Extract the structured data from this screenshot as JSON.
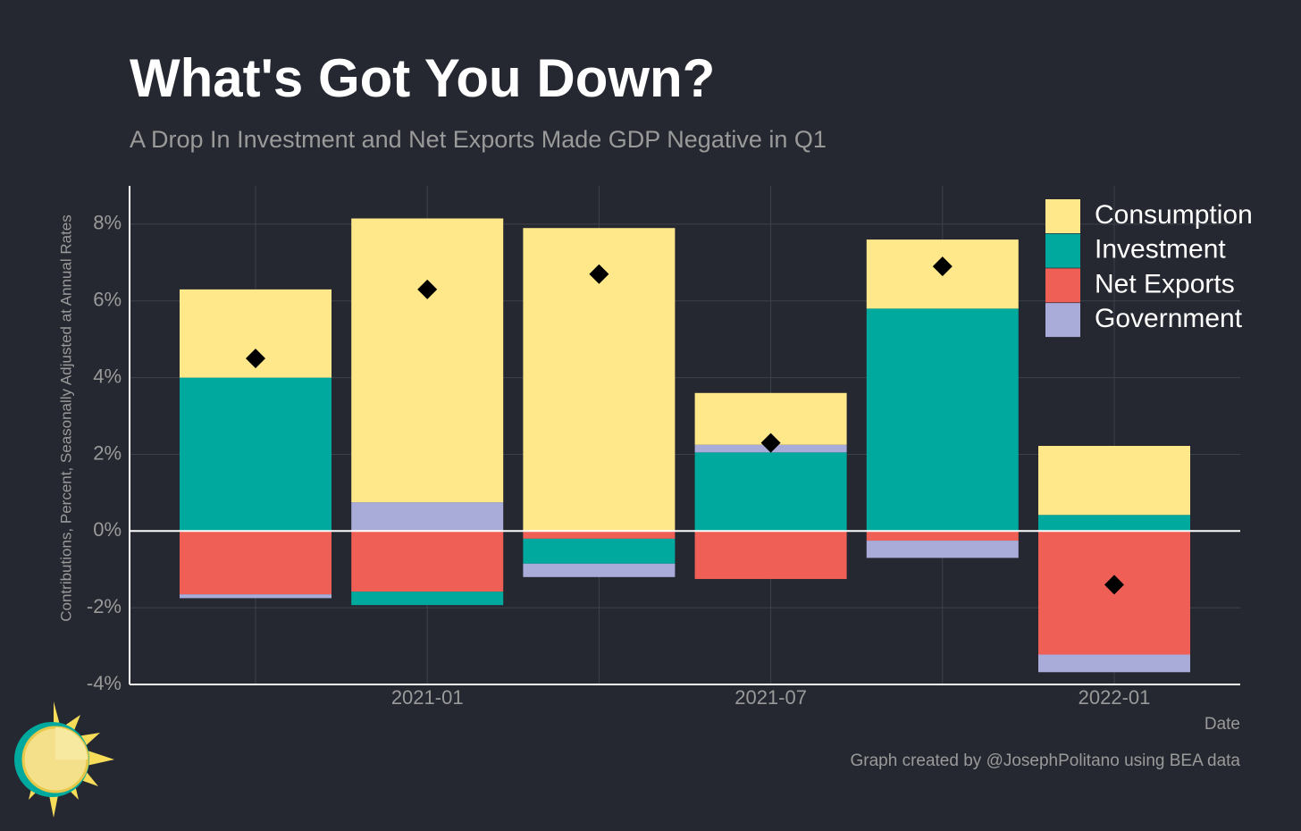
{
  "chart_data": {
    "type": "stacked-bar",
    "title": "What's Got You Down?",
    "subtitle": "A Drop In Investment and Net Exports Made GDP Negative in Q1",
    "y_label": "Contributions, Percent, Seasonally Adjusted at Annual Rates",
    "x_label": "Date",
    "caption": "Graph created by @JosephPolitano using BEA data",
    "categories": [
      null,
      "2021-01",
      null,
      "2021-07",
      null,
      "2022-01"
    ],
    "series": [
      {
        "name": "Consumption",
        "color": "#FFE88A",
        "values": [
          2.3,
          7.4,
          7.9,
          1.35,
          1.8,
          1.8
        ]
      },
      {
        "name": "Investment",
        "color": "#00A99D",
        "values": [
          4.0,
          -0.35,
          -0.65,
          2.05,
          5.8,
          0.42
        ]
      },
      {
        "name": "Net Exports",
        "color": "#EF5F55",
        "values": [
          -1.65,
          -1.58,
          -0.2,
          -1.25,
          -0.25,
          -3.22
        ]
      },
      {
        "name": "Government",
        "color": "#A9ABD9",
        "values": [
          -0.1,
          0.75,
          -0.35,
          0.2,
          -0.45,
          -0.46
        ]
      }
    ],
    "markers": {
      "color": "#000000",
      "values": [
        4.5,
        6.3,
        6.7,
        2.3,
        6.9,
        -1.4
      ]
    },
    "ylim": [
      -4,
      9
    ],
    "yticks": [
      {
        "value": -4,
        "label": "-4%"
      },
      {
        "value": -2,
        "label": "-2%"
      },
      {
        "value": 0,
        "label": "0%"
      },
      {
        "value": 2,
        "label": "2%"
      },
      {
        "value": 4,
        "label": "4%"
      },
      {
        "value": 6,
        "label": "6%"
      },
      {
        "value": 8,
        "label": "8%"
      }
    ],
    "grid": true,
    "legend": "top-right"
  }
}
